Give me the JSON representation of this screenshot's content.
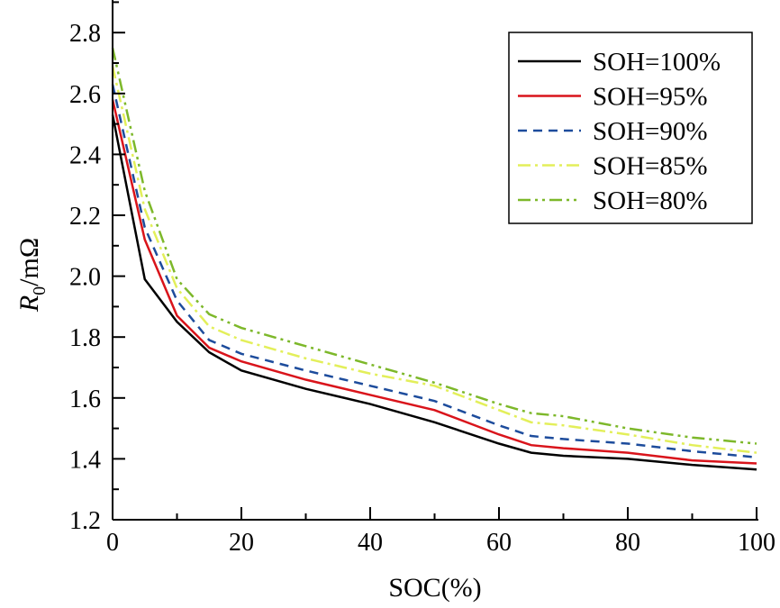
{
  "chart_data": {
    "type": "line",
    "title": "",
    "xlabel": "SOC(%)",
    "ylabel_main": "R",
    "ylabel_sub": "0",
    "ylabel_unit": "/mΩ",
    "xlim": [
      0,
      100
    ],
    "ylim": [
      1.2,
      2.9
    ],
    "xticks": [
      "0",
      "20",
      "40",
      "60",
      "80",
      "100"
    ],
    "yticks": [
      "1.2",
      "1.4",
      "1.6",
      "1.8",
      "2.0",
      "2.2",
      "2.4",
      "2.6",
      "2.8"
    ],
    "legend_position": "top-right",
    "x": [
      0,
      5,
      10,
      15,
      20,
      30,
      40,
      50,
      60,
      65,
      70,
      80,
      90,
      100
    ],
    "series": [
      {
        "name": "SOH=100%",
        "color": "#000000",
        "dash": "",
        "values": [
          2.53,
          1.99,
          1.85,
          1.75,
          1.69,
          1.63,
          1.58,
          1.52,
          1.45,
          1.42,
          1.41,
          1.4,
          1.38,
          1.365
        ]
      },
      {
        "name": "SOH=95%",
        "color": "#d9141b",
        "dash": "",
        "values": [
          2.58,
          2.12,
          1.87,
          1.765,
          1.72,
          1.66,
          1.61,
          1.56,
          1.48,
          1.445,
          1.435,
          1.42,
          1.395,
          1.385
        ]
      },
      {
        "name": "SOH=90%",
        "color": "#1d4c9c",
        "dash": "10 7",
        "values": [
          2.63,
          2.16,
          1.92,
          1.79,
          1.745,
          1.69,
          1.64,
          1.59,
          1.51,
          1.475,
          1.465,
          1.45,
          1.425,
          1.405
        ]
      },
      {
        "name": "SOH=85%",
        "color": "#e3ef5a",
        "dash": "14 5 3 5",
        "values": [
          2.69,
          2.22,
          1.96,
          1.835,
          1.79,
          1.73,
          1.68,
          1.64,
          1.56,
          1.52,
          1.51,
          1.48,
          1.445,
          1.42
        ]
      },
      {
        "name": "SOH=80%",
        "color": "#7db82a",
        "dash": "14 5 3 5 3 5",
        "values": [
          2.75,
          2.28,
          1.99,
          1.875,
          1.83,
          1.77,
          1.71,
          1.65,
          1.58,
          1.55,
          1.54,
          1.5,
          1.47,
          1.45
        ]
      }
    ]
  }
}
